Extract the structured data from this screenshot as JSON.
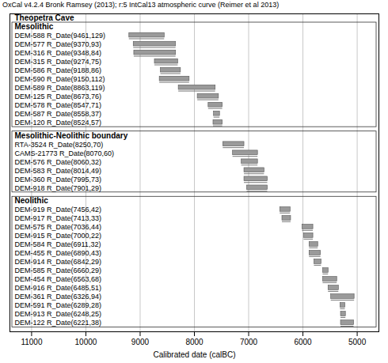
{
  "chart_data": {
    "type": "range",
    "title": "OxCal v4.2.4 Bronk Ramsey (2013); r:5 IntCal13 atmospheric curve (Reimer et al 2013)",
    "subtitle": "Theopetra Cave",
    "x_label": "Calibrated date (calBC)",
    "xlim": [
      11400,
      4600
    ],
    "xticks": [
      11000,
      10000,
      9000,
      8000,
      7000,
      6000,
      5000
    ],
    "grid": true,
    "color": "#9a9a9a",
    "groups": [
      {
        "name": "Mesolithic",
        "categories": [
          "DEM-588 R_Date(9461,129)",
          "DEM-577 R_Date(9370,93)",
          "DEM-316 R_Date(9348,84)",
          "DEM-315 R_Date(9274,75)",
          "DEM-586 R_Date(9188,86)",
          "DEM-590 R_Date(9150,112)",
          "DEM-589 R_Date(8863,119)",
          "DEM-125 R_Date(8673,76)",
          "DEM-578 R_Date(8547,71)",
          "DEM-587 R_Date(8558,37)",
          "DEM-120 R_Date(8524,57)"
        ],
        "ranges": [
          [
            9200,
            8550
          ],
          [
            9120,
            8340
          ],
          [
            9110,
            8340
          ],
          [
            8730,
            8300
          ],
          [
            8620,
            8250
          ],
          [
            8640,
            8090
          ],
          [
            8290,
            7610
          ],
          [
            7940,
            7550
          ],
          [
            7740,
            7480
          ],
          [
            7640,
            7530
          ],
          [
            7650,
            7480
          ]
        ]
      },
      {
        "name": "Mesolithic-Neolithic boundary",
        "categories": [
          "RTA-3524 R_Date(8250,70)",
          "CAMS-21773 R_Date(8070,60)",
          "DEM-576 R_Date(8060,32)",
          "DEM-583 R_Date(8014,49)",
          "DEM-360 R_Date(7995,73)",
          "DEM-918 R_Date(7901,29)"
        ],
        "ranges": [
          [
            7470,
            7080
          ],
          [
            7290,
            6830
          ],
          [
            7130,
            6830
          ],
          [
            7080,
            6710
          ],
          [
            7080,
            6650
          ],
          [
            7030,
            6650
          ]
        ]
      },
      {
        "name": "Neolithic",
        "categories": [
          "DEM-919 R_Date(7456,42)",
          "DEM-917 R_Date(7413,33)",
          "DEM-575 R_Date(7036,44)",
          "DEM-915 R_Date(7000,22)",
          "DEM-584 R_Date(6911,32)",
          "DEM-455 R_Date(6890,43)",
          "DEM-914 R_Date(6842,29)",
          "DEM-585 R_Date(6660,29)",
          "DEM-454 R_Date(6563,68)",
          "DEM-916 R_Date(6485,51)",
          "DEM-361 R_Date(6326,94)",
          "DEM-591 R_Date(6289,28)",
          "DEM-913 R_Date(6248,25)",
          "DEM-122 R_Date(6221,38)"
        ],
        "ranges": [
          [
            6420,
            6230
          ],
          [
            6380,
            6220
          ],
          [
            6010,
            5810
          ],
          [
            5980,
            5810
          ],
          [
            5880,
            5720
          ],
          [
            5880,
            5670
          ],
          [
            5790,
            5660
          ],
          [
            5630,
            5530
          ],
          [
            5630,
            5370
          ],
          [
            5530,
            5340
          ],
          [
            5480,
            5050
          ],
          [
            5310,
            5220
          ],
          [
            5300,
            5210
          ],
          [
            5300,
            5060
          ]
        ]
      }
    ]
  }
}
